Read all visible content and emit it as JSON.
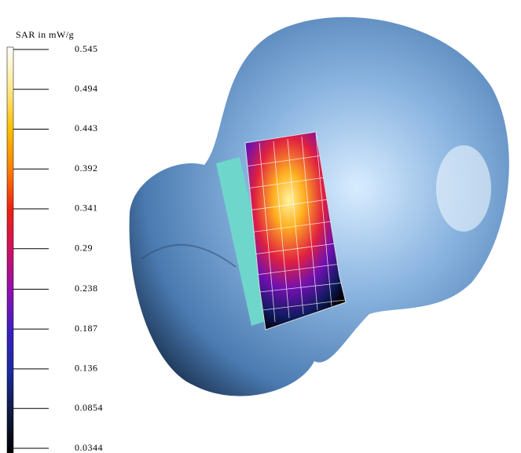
{
  "colorbar": {
    "title": "SAR in mW/g",
    "ticks": [
      0.545,
      0.494,
      0.443,
      0.392,
      0.341,
      0.29,
      0.238,
      0.187,
      0.136,
      0.0854,
      0.0344
    ]
  }
}
